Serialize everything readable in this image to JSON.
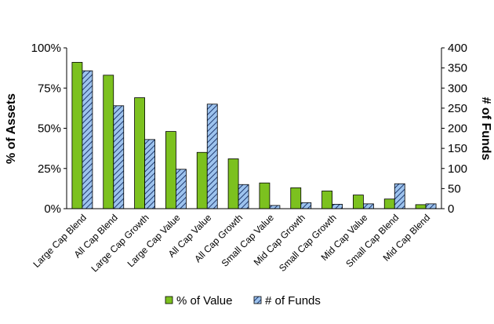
{
  "chart_data": {
    "type": "bar",
    "categories": [
      "Large Cap Blend",
      "All Cap Blend",
      "Large Cap Growth",
      "Large Cap Value",
      "All Cap Value",
      "All Cap Growth",
      "Small Cap Value",
      "Mid Cap Growth",
      "Small Cap Growth",
      "Mid Cap Value",
      "Small Cap Blend",
      "Mid Cap Blend"
    ],
    "series": [
      {
        "name": "% of Value",
        "axis": "left",
        "color": "#7cc11f",
        "pattern": "solid",
        "values": [
          91,
          83,
          69,
          48,
          35,
          31,
          16,
          13,
          11,
          8.5,
          6,
          2.5
        ]
      },
      {
        "name": "# of Funds",
        "axis": "right",
        "color": "#8fb8e8",
        "pattern": "diagonal-hatch",
        "values": [
          343,
          256,
          172,
          98,
          260,
          60,
          8,
          15,
          11,
          12,
          62,
          12
        ]
      }
    ],
    "ylabel": "% of Assets",
    "y2label": "# of Funds",
    "ylim": [
      0,
      100
    ],
    "y2lim": [
      0,
      400
    ],
    "yticks": [
      "0%",
      "25%",
      "50%",
      "75%",
      "100%"
    ],
    "y2ticks": [
      "0",
      "50",
      "100",
      "150",
      "200",
      "250",
      "300",
      "350",
      "400"
    ],
    "grid": false,
    "legend_position": "bottom"
  }
}
